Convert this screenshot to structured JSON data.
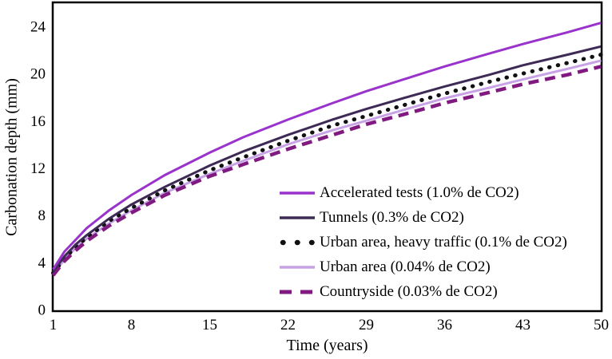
{
  "figure": {
    "background": "#FFFFFF",
    "border_color": "#000000",
    "text_color": "#000000"
  },
  "chart_data": {
    "type": "line",
    "title": "",
    "xlabel": "Time (years)",
    "ylabel": "Carbonation depth (mm)",
    "xlim": [
      1,
      50
    ],
    "ylim": [
      0,
      26
    ],
    "x_ticks": [
      1,
      8,
      15,
      22,
      29,
      36,
      43,
      50
    ],
    "y_ticks": [
      0,
      4,
      8,
      12,
      16,
      20,
      24
    ],
    "grid": false,
    "legend_position": "inside-center-right",
    "x": [
      1,
      2,
      3,
      4,
      6,
      8,
      11,
      15,
      18,
      22,
      26,
      29,
      33,
      36,
      40,
      43,
      47,
      50
    ],
    "series": [
      {
        "name": "Accelerated tests (1.0% de CO2)",
        "style": "solid",
        "color": "#9933CC",
        "values": [
          3.4,
          4.9,
          5.9,
          6.9,
          8.4,
          9.7,
          11.4,
          13.3,
          14.6,
          16.1,
          17.5,
          18.5,
          19.7,
          20.6,
          21.7,
          22.5,
          23.5,
          24.3
        ]
      },
      {
        "name": "Tunnels (0.3% de CO2)",
        "style": "solid",
        "color": "#3D2B55",
        "values": [
          3.2,
          4.5,
          5.5,
          6.3,
          7.7,
          8.9,
          10.4,
          12.2,
          13.4,
          14.8,
          16.1,
          17.0,
          18.1,
          18.9,
          19.9,
          20.7,
          21.6,
          22.3
        ]
      },
      {
        "name": "Urban area, heavy traffic (0.1% de CO2)",
        "style": "dotted",
        "color": "#111111",
        "values": [
          3.1,
          4.3,
          5.3,
          6.1,
          7.5,
          8.6,
          10.1,
          11.8,
          12.9,
          14.3,
          15.6,
          16.4,
          17.5,
          18.3,
          19.3,
          20.0,
          20.9,
          21.6
        ]
      },
      {
        "name": "Urban area (0.04% de CO2)",
        "style": "solid",
        "color": "#C7A3E6",
        "values": [
          3.0,
          4.2,
          5.2,
          6.0,
          7.3,
          8.4,
          9.9,
          11.5,
          12.6,
          14.0,
          15.2,
          16.0,
          17.1,
          17.9,
          18.8,
          19.5,
          20.4,
          21.1
        ]
      },
      {
        "name": "Countryside (0.03% de CO2)",
        "style": "dashed",
        "color": "#801A80",
        "values": [
          2.9,
          4.1,
          5.0,
          5.8,
          7.1,
          8.2,
          9.7,
          11.3,
          12.3,
          13.6,
          14.8,
          15.7,
          16.7,
          17.5,
          18.4,
          19.1,
          19.9,
          20.6
        ]
      }
    ]
  }
}
